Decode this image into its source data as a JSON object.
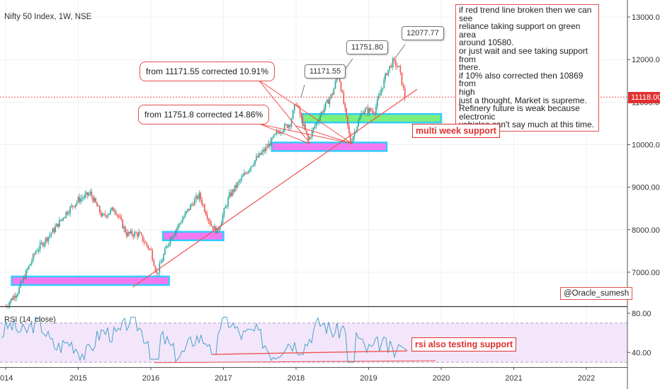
{
  "header": {
    "title": "Nifty 50 Index, 1W, NSE"
  },
  "rsi_label": "RSI (14, close)",
  "annotations": {
    "callout_1": "from 11171.55 corrected 10.91%",
    "callout_2": "from 11751.8 corrected 14.86%",
    "tag_1": "11171.55",
    "tag_2": "11751.80",
    "tag_3": "12077.77",
    "multi_week_support": "multi week support",
    "rsi_support": "rsi also testing support",
    "watermark": "@Oracle_sumesh",
    "note_lines": [
      "if red trend line broken then we can see",
      "reliance taking support on green area",
      "around 10580.",
      "or just wait and see taking support from",
      "there.",
      "if 10% also corrected then 10869 from",
      "high",
      "just a thought, Market is supreme.",
      "Refinery future is weak because electronic",
      "vehicles can't say much at this time."
    ]
  },
  "last_price": "11118.00",
  "colors": {
    "up": "#26a69a",
    "down": "#ef5350",
    "trend": "#ef5350",
    "zone_magenta": "#f279f2",
    "zone_cyan": "#33ccff",
    "zone_green": "#7cf07c",
    "rsi_line": "#4aa3c7",
    "rsi_band": "#f3e6fb"
  },
  "chart_data": [
    {
      "type": "candlestick",
      "title": "Nifty 50 Index, 1W, NSE",
      "x_ticks": [
        "014",
        "2015",
        "2016",
        "2017",
        "2018",
        "2019",
        "2020",
        "2021",
        "2022"
      ],
      "y_ticks": [
        "7000.00",
        "8000.00",
        "9000.00",
        "10000.00",
        "11000.00",
        "12000.00",
        "13000.00"
      ],
      "ylim": [
        6200,
        13400
      ],
      "close_path": [
        [
          "2014-01",
          6200
        ],
        [
          "2014-03",
          6550
        ],
        [
          "2014-06",
          7500
        ],
        [
          "2014-09",
          8000
        ],
        [
          "2014-11",
          8400
        ],
        [
          "2015-01",
          8700
        ],
        [
          "2015-03",
          8850
        ],
        [
          "2015-05",
          8300
        ],
        [
          "2015-07",
          8500
        ],
        [
          "2015-09",
          7900
        ],
        [
          "2015-11",
          7900
        ],
        [
          "2016-01",
          7500
        ],
        [
          "2016-02",
          6950
        ],
        [
          "2016-04",
          7750
        ],
        [
          "2016-06",
          8200
        ],
        [
          "2016-08",
          8650
        ],
        [
          "2016-09",
          8800
        ],
        [
          "2016-11",
          8100
        ],
        [
          "2016-12",
          7950
        ],
        [
          "2017-02",
          8800
        ],
        [
          "2017-04",
          9200
        ],
        [
          "2017-06",
          9600
        ],
        [
          "2017-08",
          9900
        ],
        [
          "2017-10",
          10300
        ],
        [
          "2017-12",
          10500
        ],
        [
          "2018-01",
          11000
        ],
        [
          "2018-03",
          10100
        ],
        [
          "2018-05",
          10700
        ],
        [
          "2018-07",
          11200
        ],
        [
          "2018-08",
          11700
        ],
        [
          "2018-10",
          10050
        ],
        [
          "2018-12",
          10800
        ],
        [
          "2019-02",
          10800
        ],
        [
          "2019-04",
          11700
        ],
        [
          "2019-05",
          11950
        ],
        [
          "2019-06",
          11800
        ],
        [
          "2019-07",
          11118
        ]
      ],
      "levels": {
        "high_1": 11171.55,
        "high_2": 11751.8,
        "high_3": 12077.77,
        "last": 11118.0
      },
      "support_zones": [
        {
          "name": "magenta-1",
          "from": "2014-02",
          "to": "2016-04",
          "low": 6700,
          "high": 6900
        },
        {
          "name": "magenta-2",
          "from": "2016-03",
          "to": "2017-01",
          "low": 7750,
          "high": 7950
        },
        {
          "name": "magenta-3",
          "from": "2017-09",
          "to": "2019-04",
          "low": 9850,
          "high": 10050
        },
        {
          "name": "green",
          "from": "2018-02",
          "to": "2020-01",
          "low": 10520,
          "high": 10720
        }
      ],
      "trend_line": [
        [
          "2015-10",
          6650
        ],
        [
          "2019-09",
          11300
        ]
      ]
    },
    {
      "type": "line",
      "title": "RSI (14, close)",
      "y_ticks": [
        "40.00",
        "80.00"
      ],
      "ylim": [
        25,
        85
      ],
      "bands": [
        30,
        70
      ]
    }
  ]
}
